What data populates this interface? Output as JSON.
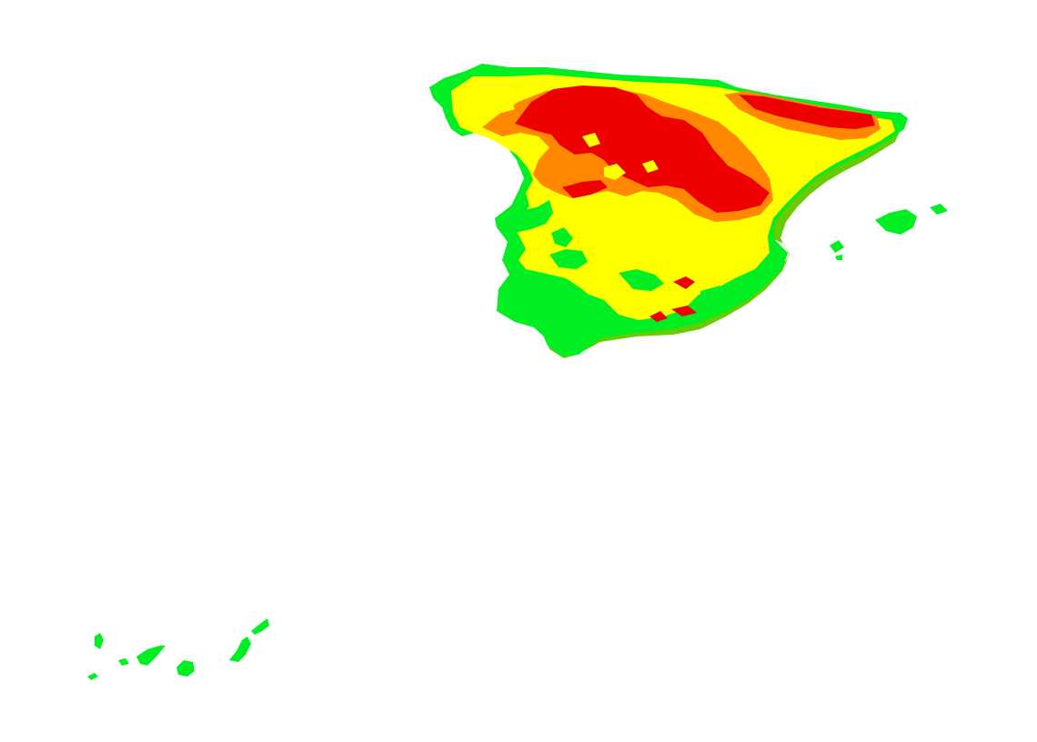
{
  "map": {
    "regions": [
      "iberian-peninsula",
      "balearic-islands",
      "canary-islands"
    ],
    "legend_colors": {
      "green": "#00ee22",
      "olive": "#66cc00",
      "yellow": "#ffff00",
      "orange": "#ff8800",
      "red": "#ee0000"
    }
  }
}
